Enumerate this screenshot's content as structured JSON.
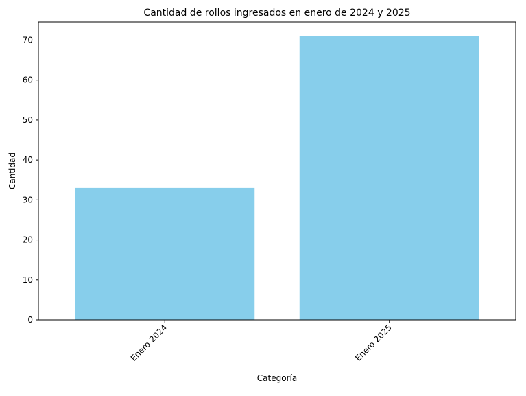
{
  "chart_data": {
    "type": "bar",
    "title": "Cantidad de rollos ingresados en enero de 2024 y 2025",
    "xlabel": "Categoría",
    "ylabel": "Cantidad",
    "categories": [
      "Enero 2024",
      "Enero 2025"
    ],
    "values": [
      33,
      71
    ],
    "ylim": [
      0,
      74.55
    ],
    "yticks": [
      0,
      10,
      20,
      30,
      40,
      50,
      60,
      70
    ],
    "bar_color": "#87CEEB",
    "grid": false,
    "legend": "none"
  }
}
